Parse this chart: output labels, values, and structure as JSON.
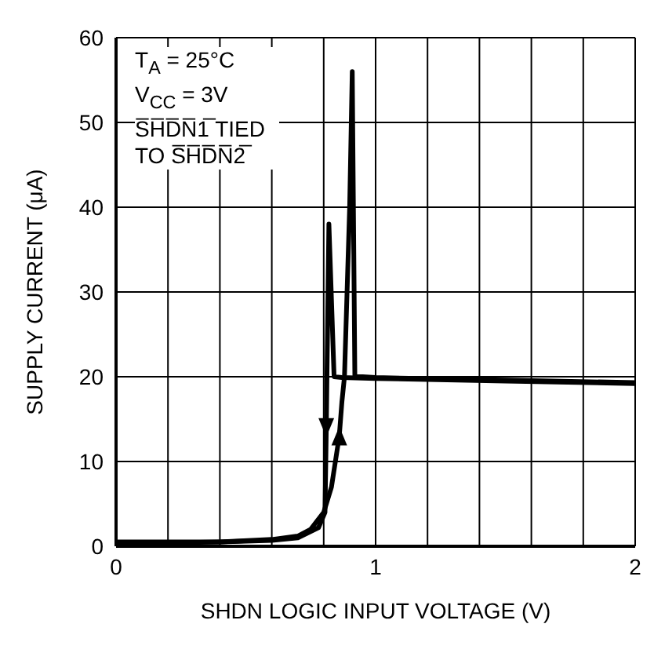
{
  "chart_data": {
    "type": "line",
    "xlabel": "SHDN LOGIC INPUT VOLTAGE (V)",
    "ylabel": "SUPPLY CURRENT (μA)",
    "annotations": [
      "T$_{A}$ = 25°C",
      "V$_{CC}$ = 3V",
      "S̅H̅D̅N̅1̅ TIED TO S̅H̅D̅N̅2̅"
    ],
    "xlim": [
      0,
      2
    ],
    "xticks": [
      0,
      {
        "value": 0.2,
        "label": null
      },
      {
        "value": 0.4,
        "label": null
      },
      {
        "value": 0.6,
        "label": null
      },
      {
        "value": 0.8,
        "label": null
      },
      1,
      {
        "value": 1.2,
        "label": null
      },
      {
        "value": 1.4,
        "label": null
      },
      {
        "value": 1.6,
        "label": null
      },
      {
        "value": 1.8,
        "label": null
      },
      2
    ],
    "ylim": [
      0,
      60
    ],
    "yticks": [
      0,
      10,
      20,
      30,
      40,
      50,
      60
    ],
    "grid": true,
    "marker": "none",
    "line_style": "solid",
    "series": [
      {
        "color": "#000000",
        "x": [
          2,
          1.5,
          1.0,
          0.87,
          0.84,
          0.82,
          0.81,
          0.805,
          0.78,
          0.7,
          0.6,
          0.4,
          0.2,
          0
        ],
        "values": [
          19.2,
          19.5,
          19.8,
          19.9,
          20,
          38,
          14,
          4,
          2.2,
          1,
          0.7,
          0.5,
          0.4,
          0.4
        ]
      },
      {
        "color": "#000000",
        "x": [
          0,
          0.2,
          0.4,
          0.6,
          0.7,
          0.75,
          0.8,
          0.83,
          0.86,
          0.87,
          0.88,
          0.9,
          0.91,
          0.92,
          0.95,
          1.0,
          1.5,
          2
        ],
        "values": [
          0.5,
          0.5,
          0.5,
          0.8,
          1.2,
          2,
          4,
          7,
          13,
          17,
          20,
          40,
          56,
          20,
          20,
          19.9,
          19.6,
          19.3
        ]
      }
    ]
  }
}
